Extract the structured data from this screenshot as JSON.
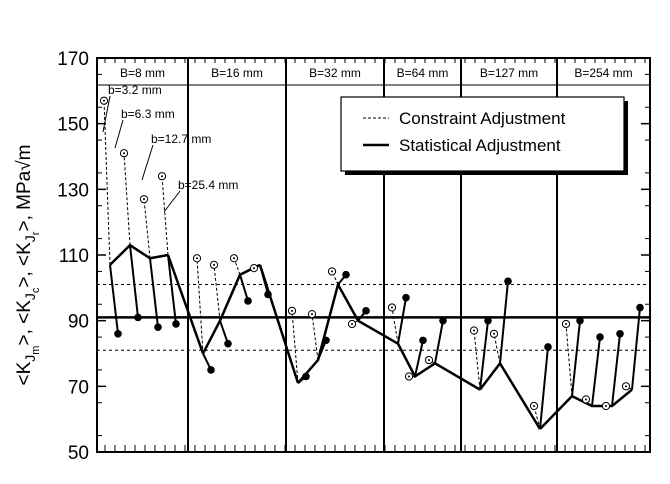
{
  "chart_data": {
    "type": "line",
    "xlabel": "",
    "ylabel": "<K_Jm>, <K_Jc>, <K_Jr>, MPa√m",
    "ylim": [
      50,
      170
    ],
    "yticks": [
      50,
      70,
      90,
      110,
      130,
      150,
      170
    ],
    "grid": false,
    "legend": {
      "position": "top-right",
      "entries": [
        {
          "label": "Constraint Adjustment",
          "style": "dashed"
        },
        {
          "label": "Statistical Adjustment",
          "style": "solid"
        }
      ]
    },
    "reference_lines": [
      {
        "y": 91,
        "style": "solid"
      },
      {
        "y": 101,
        "style": "dotted"
      },
      {
        "y": 81,
        "style": "dotted"
      }
    ],
    "panels": [
      {
        "label": "B=8 mm",
        "raw": [
          107,
          113,
          109,
          110
        ],
        "constraint": [
          157,
          141,
          127,
          134
        ],
        "statistical": [
          86,
          91,
          88,
          89
        ],
        "annotations": [
          "b=3.2 mm",
          "b=6.3 mm",
          "b=12.7 mm",
          "b=25.4 mm"
        ]
      },
      {
        "label": "B=16 mm",
        "raw": [
          80,
          90,
          104,
          107
        ],
        "constraint": [
          109,
          107,
          109,
          106
        ],
        "statistical": [
          75,
          83,
          96,
          98
        ]
      },
      {
        "label": "B=32 mm",
        "raw": [
          71,
          78,
          101,
          90
        ],
        "constraint": [
          93,
          92,
          105,
          89
        ],
        "statistical": [
          73,
          84,
          104,
          93
        ]
      },
      {
        "label": "B=64 mm",
        "raw": [
          83,
          73,
          77
        ],
        "constraint": [
          94,
          73,
          78
        ],
        "statistical": [
          97,
          84,
          90
        ]
      },
      {
        "label": "B=127 mm",
        "raw": [
          69,
          77,
          57
        ],
        "constraint": [
          87,
          86,
          64
        ],
        "statistical": [
          90,
          102,
          82
        ]
      },
      {
        "label": "B=254 mm",
        "raw": [
          67,
          64,
          64,
          69
        ],
        "constraint": [
          89,
          66,
          64,
          70
        ],
        "statistical": [
          90,
          85,
          86,
          94
        ]
      }
    ]
  }
}
